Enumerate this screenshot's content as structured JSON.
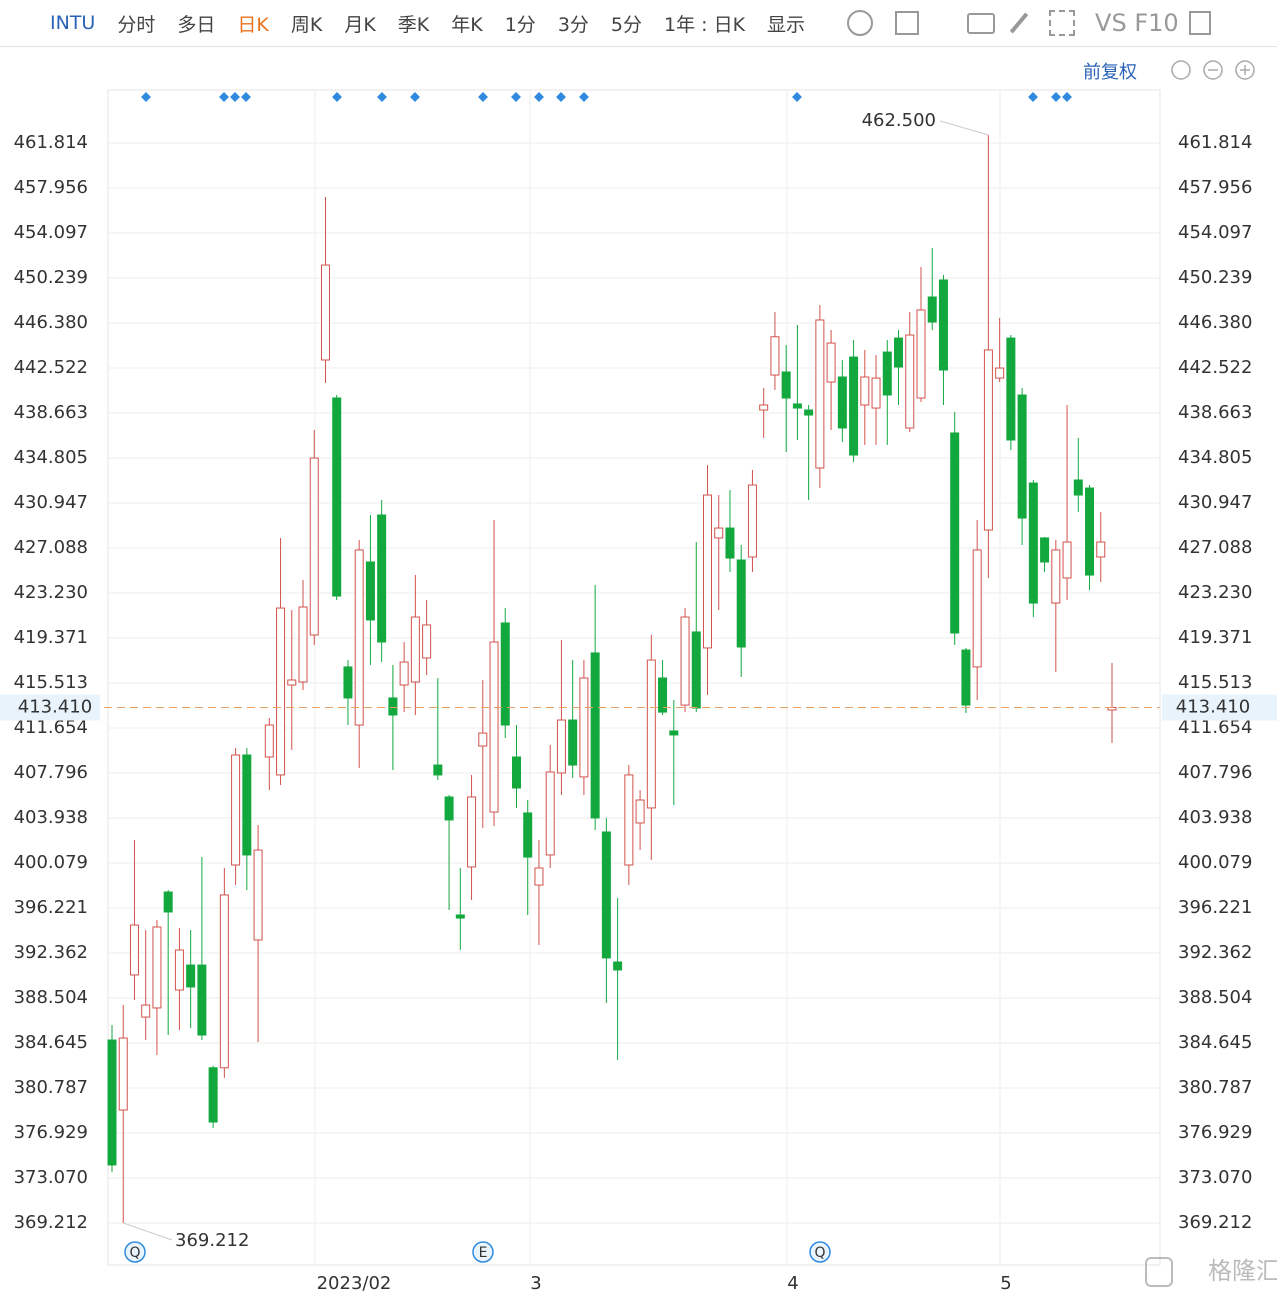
{
  "toolbar": {
    "symbol": "INTU",
    "tabs": [
      "分时",
      "多日",
      "日K",
      "周K",
      "月K",
      "季K",
      "年K",
      "1分",
      "3分",
      "5分"
    ],
    "period": "1年 : 日K",
    "display": "显示",
    "vs": "VS F10"
  },
  "adjust": "前复权",
  "watermark": "格隆汇",
  "chart_data": {
    "type": "candlestick",
    "x_labels": [
      "2023/02",
      "3",
      "4",
      "5"
    ],
    "up_color": "#d2524c",
    "down_color": "#12a83e",
    "ylim": [
      365.61,
      466.36
    ],
    "yticks": [
      461.814,
      457.956,
      454.097,
      450.239,
      {
        "value": 446.38,
        "label": "446.380"
      },
      442.522,
      438.663,
      434.805,
      430.947,
      427.088,
      {
        "value": 423.23,
        "label": "423.230"
      },
      419.371,
      415.513,
      411.654,
      407.796,
      403.938,
      400.079,
      396.221,
      392.362,
      388.504,
      384.645,
      380.787,
      376.929,
      {
        "value": 373.07,
        "label": "373.070"
      },
      369.212
    ],
    "grid": true,
    "open": [
      384.9,
      378.9,
      390.48,
      386.87,
      387.65,
      397.59,
      389.19,
      391.33,
      391.33,
      382.52,
      382.52,
      399.91,
      409.34,
      393.48,
      409.17,
      407.63,
      415.34,
      415.6,
      419.63,
      443.21,
      439.95,
      416.89,
      411.91,
      425.89,
      429.92,
      414.23,
      415.34,
      415.6,
      417.66,
      408.48,
      405.74,
      395.62,
      399.74,
      410.11,
      404.45,
      420.66,
      409.17,
      404.37,
      398.19,
      400.77,
      407.8,
      412.34,
      407.46,
      418.09,
      402.74,
      391.59,
      399.91,
      403.51,
      404.8,
      415.94,
      411.4,
      413.62,
      419.89,
      418.52,
      427.95,
      428.8,
      426.06,
      426.32,
      438.92,
      441.92,
      442.18,
      439.44,
      438.92,
      433.95,
      441.32,
      441.75,
      443.46,
      439.35,
      439.09,
      443.89,
      445.09,
      437.38,
      439.95,
      448.61,
      450.07,
      436.95,
      418.34,
      416.89,
      428.63,
      441.66,
      445.09,
      440.21,
      432.66,
      427.95,
      422.37,
      424.52,
      432.92,
      432.23,
      426.32,
      413.2
    ],
    "high": [
      386.19,
      387.9,
      402.05,
      394.33,
      395.19,
      397.76,
      394.5,
      394.33,
      400.59,
      382.68,
      399.65,
      409.94,
      409.94,
      403.34,
      412.51,
      427.95,
      421.77,
      424.35,
      437.21,
      457.18,
      440.21,
      417.48,
      427.77,
      429.92,
      431.2,
      417.06,
      419.03,
      424.77,
      422.63,
      415.94,
      405.91,
      399.65,
      407.63,
      415.77,
      429.49,
      421.94,
      411.91,
      405.48,
      402.05,
      410.2,
      419.2,
      417.48,
      417.48,
      423.92,
      403.94,
      397.08,
      408.48,
      406.34,
      419.63,
      417.48,
      414.05,
      421.94,
      427.6,
      434.2,
      431.63,
      432.06,
      427.35,
      433.78,
      440.81,
      447.32,
      444.49,
      446.21,
      439.35,
      447.92,
      445.78,
      443.21,
      444.92,
      444.07,
      443.64,
      444.92,
      445.78,
      447.32,
      451.18,
      452.81,
      450.5,
      438.75,
      418.52,
      429.49,
      462.5,
      446.81,
      445.35,
      440.81,
      432.92,
      428.03,
      427.77,
      439.35,
      436.52,
      432.49,
      430.17,
      417.23
    ],
    "low": [
      373.58,
      369.212,
      388.33,
      384.9,
      383.62,
      385.33,
      385.76,
      385.93,
      384.9,
      377.36,
      381.65,
      398.19,
      397.76,
      384.73,
      406.34,
      406.77,
      409.77,
      414.91,
      418.77,
      441.24,
      422.63,
      411.91,
      408.22,
      417.06,
      417.31,
      408.05,
      413.02,
      412.77,
      416.2,
      407.2,
      396.05,
      392.62,
      396.91,
      403.08,
      403.25,
      410.8,
      404.8,
      395.62,
      393.05,
      399.65,
      405.91,
      407.37,
      405.91,
      402.91,
      388.08,
      383.19,
      398.19,
      401.19,
      400.34,
      412.77,
      405.05,
      413.02,
      413.02,
      414.48,
      421.77,
      425.03,
      416.03,
      425.03,
      436.52,
      440.64,
      435.32,
      436.35,
      431.2,
      432.23,
      437.21,
      436.18,
      434.46,
      435.92,
      435.92,
      435.92,
      439.35,
      437.03,
      439.61,
      445.78,
      439.35,
      418.77,
      412.94,
      414.05,
      424.52,
      441.32,
      435.49,
      427.35,
      421.17,
      425.03,
      416.46,
      422.63,
      430.17,
      423.49,
      424.17,
      410.37
    ],
    "close": [
      374.19,
      385.07,
      394.76,
      387.9,
      394.59,
      395.88,
      392.62,
      389.45,
      385.33,
      377.87,
      397.34,
      409.34,
      400.77,
      401.19,
      411.91,
      421.94,
      415.77,
      422.03,
      434.8,
      451.35,
      422.97,
      414.23,
      426.92,
      420.92,
      419.03,
      412.77,
      417.31,
      421.17,
      420.49,
      407.63,
      403.77,
      395.36,
      405.74,
      411.22,
      419.03,
      411.91,
      406.51,
      400.59,
      399.65,
      407.88,
      412.34,
      408.48,
      415.94,
      403.94,
      391.94,
      390.91,
      407.63,
      405.48,
      417.48,
      413.02,
      411.06,
      421.17,
      413.37,
      431.63,
      428.8,
      426.23,
      418.6,
      432.49,
      439.35,
      445.2,
      439.95,
      439.09,
      438.49,
      446.64,
      444.66,
      437.38,
      435.06,
      441.75,
      441.66,
      440.21,
      442.61,
      445.35,
      447.5,
      446.47,
      442.35,
      419.8,
      413.62,
      426.92,
      444.07,
      442.52,
      436.35,
      429.66,
      422.37,
      425.89,
      426.92,
      427.6,
      431.63,
      424.77,
      427.6,
      413.41
    ],
    "max_label": {
      "value": 462.5,
      "label": "462.500"
    },
    "min_label": 369.212,
    "last_price": {
      "value": 413.41,
      "label": "413.410"
    },
    "events": [
      "Q",
      "E",
      "Q"
    ]
  }
}
